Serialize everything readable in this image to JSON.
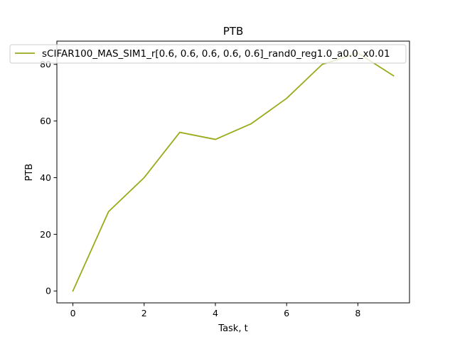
{
  "chart_data": {
    "type": "line",
    "title": "PTB",
    "xlabel": "Task, t",
    "ylabel": "PTB",
    "xlim": [
      -0.45,
      9.45
    ],
    "ylim": [
      -4.2,
      88.2
    ],
    "xticks": [
      0,
      2,
      4,
      6,
      8
    ],
    "yticks": [
      0,
      20,
      40,
      60,
      80
    ],
    "grid": false,
    "legend_position": "top",
    "series": [
      {
        "name": "sCIFAR100_MAS_SIM1_r[0.6, 0.6, 0.6, 0.6, 0.6]_rand0_reg1.0_a0.0_x0.01",
        "color": "#9aaa18",
        "x": [
          0,
          1,
          2,
          3,
          4,
          5,
          6,
          7,
          8,
          9
        ],
        "y": [
          0,
          28,
          40,
          56,
          53.5,
          59,
          68,
          80,
          84,
          76
        ]
      }
    ]
  }
}
